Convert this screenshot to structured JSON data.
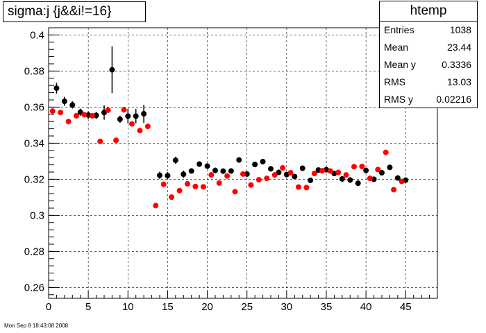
{
  "chart_data": {
    "type": "scatter",
    "title": "sigma:j {j&&i!=16}",
    "xlim": [
      0,
      49
    ],
    "ylim": [
      0.254,
      0.404
    ],
    "x_ticks": [
      "0",
      "5",
      "10",
      "15",
      "20",
      "25",
      "30",
      "35",
      "40",
      "45"
    ],
    "y_ticks": [
      "0.26",
      "0.28",
      "0.3",
      "0.32",
      "0.34",
      "0.36",
      "0.38",
      "0.4"
    ],
    "grid": true,
    "series": [
      {
        "color": "#000000",
        "error_bars": true,
        "points": [
          {
            "x": 1,
            "y": 0.3705,
            "err": 0.003
          },
          {
            "x": 2,
            "y": 0.3632,
            "err": 0.0025
          },
          {
            "x": 3,
            "y": 0.3612,
            "err": 0.002
          },
          {
            "x": 4,
            "y": 0.3572,
            "err": 0.002
          },
          {
            "x": 5,
            "y": 0.3556,
            "err": 0.002
          },
          {
            "x": 6,
            "y": 0.3554,
            "err": 0.002
          },
          {
            "x": 7,
            "y": 0.357,
            "err": 0.004
          },
          {
            "x": 8,
            "y": 0.3807,
            "err": 0.013
          },
          {
            "x": 9,
            "y": 0.3533,
            "err": 0.002
          },
          {
            "x": 10,
            "y": 0.355,
            "err": 0.004
          },
          {
            "x": 11,
            "y": 0.355,
            "err": 0.004
          },
          {
            "x": 12,
            "y": 0.3563,
            "err": 0.005
          },
          {
            "x": 14,
            "y": 0.3222,
            "err": 0.002
          },
          {
            "x": 15,
            "y": 0.322,
            "err": 0.002
          },
          {
            "x": 16,
            "y": 0.3305,
            "err": 0.002
          },
          {
            "x": 17,
            "y": 0.3228,
            "err": 0.002
          },
          {
            "x": 18,
            "y": 0.3246,
            "err": 0.0015
          },
          {
            "x": 19,
            "y": 0.3284,
            "err": 0.0015
          },
          {
            "x": 20,
            "y": 0.3273,
            "err": 0.0015
          },
          {
            "x": 21,
            "y": 0.3249,
            "err": 0.0015
          },
          {
            "x": 22,
            "y": 0.3245,
            "err": 0.0015
          },
          {
            "x": 23,
            "y": 0.3246,
            "err": 0.0015
          },
          {
            "x": 24,
            "y": 0.3307,
            "err": 0.0015
          },
          {
            "x": 25,
            "y": 0.3229,
            "err": 0.0015
          },
          {
            "x": 26,
            "y": 0.3282,
            "err": 0.0015
          },
          {
            "x": 27,
            "y": 0.3298,
            "err": 0.0015
          },
          {
            "x": 28,
            "y": 0.3258,
            "err": 0.0015
          },
          {
            "x": 29,
            "y": 0.3238,
            "err": 0.0015
          },
          {
            "x": 30,
            "y": 0.3226,
            "err": 0.0015
          },
          {
            "x": 31,
            "y": 0.3215,
            "err": 0.0015
          },
          {
            "x": 32,
            "y": 0.3261,
            "err": 0.0015
          },
          {
            "x": 33,
            "y": 0.3194,
            "err": 0.0015
          },
          {
            "x": 34,
            "y": 0.3251,
            "err": 0.0015
          },
          {
            "x": 35,
            "y": 0.3253,
            "err": 0.0015
          },
          {
            "x": 36,
            "y": 0.3232,
            "err": 0.0015
          },
          {
            "x": 37,
            "y": 0.3202,
            "err": 0.0015
          },
          {
            "x": 38,
            "y": 0.3196,
            "err": 0.0015
          },
          {
            "x": 39,
            "y": 0.3178,
            "err": 0.0015
          },
          {
            "x": 40,
            "y": 0.3249,
            "err": 0.0015
          },
          {
            "x": 41,
            "y": 0.32,
            "err": 0.0015
          },
          {
            "x": 42,
            "y": 0.3236,
            "err": 0.0015
          },
          {
            "x": 43,
            "y": 0.3266,
            "err": 0.0015
          },
          {
            "x": 44,
            "y": 0.3207,
            "err": 0.0015
          },
          {
            "x": 45,
            "y": 0.3195,
            "err": 0.0015
          }
        ]
      },
      {
        "color": "#ff0000",
        "error_bars": false,
        "points": [
          {
            "x": 0.5,
            "y": 0.3578
          },
          {
            "x": 1.5,
            "y": 0.357
          },
          {
            "x": 2.5,
            "y": 0.352
          },
          {
            "x": 3.5,
            "y": 0.3552
          },
          {
            "x": 4.5,
            "y": 0.3558
          },
          {
            "x": 5.5,
            "y": 0.3552
          },
          {
            "x": 6.5,
            "y": 0.341
          },
          {
            "x": 7.5,
            "y": 0.3583
          },
          {
            "x": 8.5,
            "y": 0.3416
          },
          {
            "x": 9.5,
            "y": 0.3585
          },
          {
            "x": 10.5,
            "y": 0.3507
          },
          {
            "x": 11.5,
            "y": 0.347
          },
          {
            "x": 12.5,
            "y": 0.3493
          },
          {
            "x": 13.5,
            "y": 0.3054
          },
          {
            "x": 14.5,
            "y": 0.3172
          },
          {
            "x": 15.5,
            "y": 0.3101
          },
          {
            "x": 16.5,
            "y": 0.3137
          },
          {
            "x": 17.5,
            "y": 0.3175
          },
          {
            "x": 18.5,
            "y": 0.316
          },
          {
            "x": 19.5,
            "y": 0.3158
          },
          {
            "x": 20.5,
            "y": 0.3224
          },
          {
            "x": 21.5,
            "y": 0.3179
          },
          {
            "x": 22.5,
            "y": 0.3218
          },
          {
            "x": 23.5,
            "y": 0.3131
          },
          {
            "x": 24.5,
            "y": 0.3229
          },
          {
            "x": 25.5,
            "y": 0.3168
          },
          {
            "x": 26.5,
            "y": 0.3197
          },
          {
            "x": 27.5,
            "y": 0.3205
          },
          {
            "x": 28.5,
            "y": 0.3224
          },
          {
            "x": 29.5,
            "y": 0.3263
          },
          {
            "x": 30.5,
            "y": 0.3236
          },
          {
            "x": 31.5,
            "y": 0.3157
          },
          {
            "x": 32.5,
            "y": 0.3154
          },
          {
            "x": 33.5,
            "y": 0.3232
          },
          {
            "x": 34.5,
            "y": 0.3247
          },
          {
            "x": 35.5,
            "y": 0.3246
          },
          {
            "x": 36.5,
            "y": 0.3238
          },
          {
            "x": 37.5,
            "y": 0.3224
          },
          {
            "x": 38.5,
            "y": 0.327
          },
          {
            "x": 39.5,
            "y": 0.3271
          },
          {
            "x": 40.5,
            "y": 0.3205
          },
          {
            "x": 41.5,
            "y": 0.3254
          },
          {
            "x": 42.5,
            "y": 0.3349
          },
          {
            "x": 43.5,
            "y": 0.3142
          },
          {
            "x": 44.5,
            "y": 0.3188
          }
        ]
      }
    ]
  },
  "stats": {
    "title": "htemp",
    "rows": [
      {
        "label": "Entries",
        "value": "1038"
      },
      {
        "label": "Mean",
        "value": "23.44"
      },
      {
        "label": "Mean y",
        "value": "0.3336"
      },
      {
        "label": "RMS",
        "value": "13.03"
      },
      {
        "label": "RMS y",
        "value": "0.02216"
      }
    ]
  },
  "footer": {
    "timestamp": "Mon Sep  8 18:43:08 2008"
  }
}
